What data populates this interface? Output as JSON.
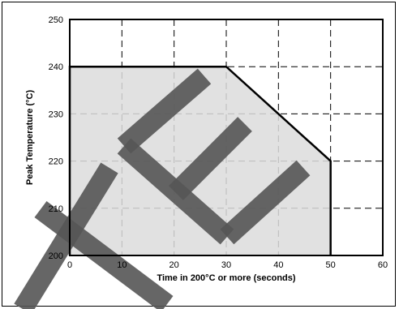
{
  "chart_data": {
    "type": "area",
    "xlabel": "Time in 200°C or more (seconds)",
    "ylabel": "Peak Temperature (°C)",
    "xlim": [
      0,
      60
    ],
    "ylim": [
      200,
      250
    ],
    "x_ticks": [
      "0",
      "10",
      "20",
      "30",
      "40",
      "50",
      "60"
    ],
    "y_ticks": [
      "200",
      "210",
      "220",
      "230",
      "240",
      "250"
    ],
    "grid": true,
    "series": [
      {
        "points": [
          {
            "x": 0,
            "y": 200
          },
          {
            "x": 0,
            "y": 240
          },
          {
            "x": 30,
            "y": 240
          },
          {
            "x": 50,
            "y": 220
          },
          {
            "x": 50,
            "y": 200
          }
        ]
      }
    ],
    "colors": {
      "region_fill": "#dcdcdc",
      "outline": "#000000",
      "grid": "#000000",
      "watermark": "#555555"
    }
  }
}
